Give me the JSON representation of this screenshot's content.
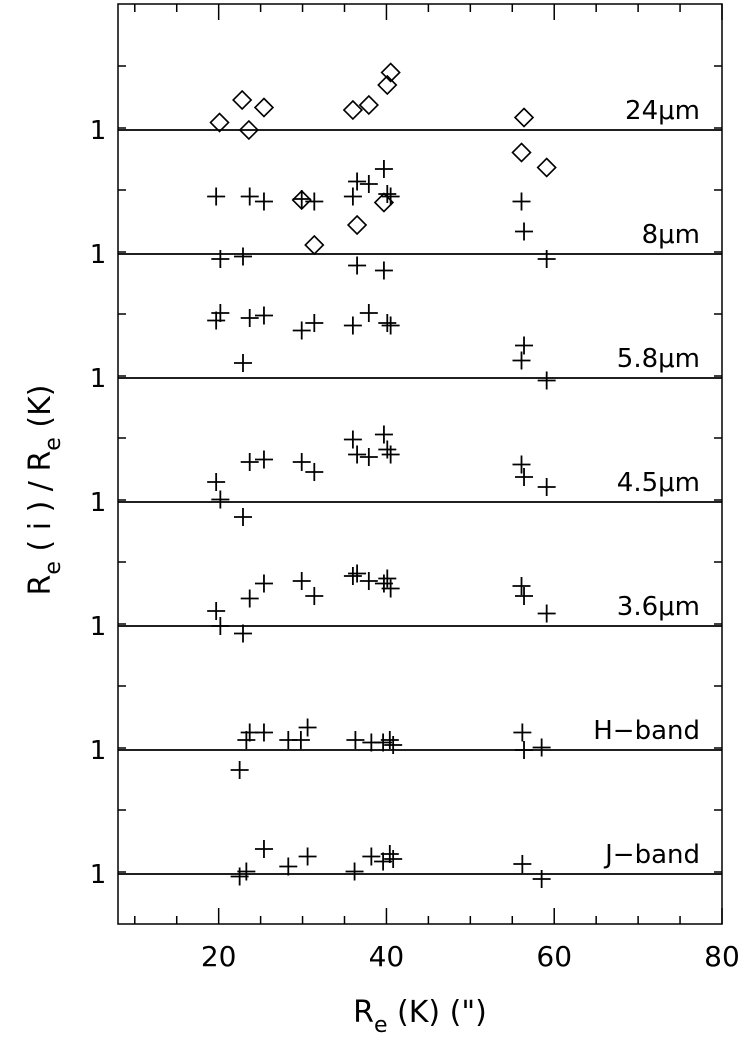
{
  "chart_data": {
    "type": "scatter",
    "title": "",
    "xlabel": "R",
    "xlabel_sub": "e",
    "xlabel_tail": " (K) (\")",
    "ylabel": "R",
    "ylabel_sub1": "e",
    "ylabel_mid": " ( i ) / R",
    "ylabel_sub2": "e",
    "ylabel_tail": " (K)",
    "xlim": [
      8,
      80
    ],
    "x_ticks": [
      20,
      40,
      60,
      80
    ],
    "x_tick_labels": [
      "20",
      "40",
      "60",
      "80"
    ],
    "grid": false,
    "legend": "none",
    "y_tick_label": "1",
    "series": [
      {
        "name": "24μm",
        "marker": "diamond",
        "baseline": 1,
        "points": [
          {
            "x": 20.1,
            "y": 1.03
          },
          {
            "x": 22.8,
            "y": 1.12
          },
          {
            "x": 23.6,
            "y": 1.0
          },
          {
            "x": 25.4,
            "y": 1.09
          },
          {
            "x": 29.9,
            "y": 0.72
          },
          {
            "x": 31.4,
            "y": 0.54
          },
          {
            "x": 36.0,
            "y": 1.08
          },
          {
            "x": 36.5,
            "y": 0.62
          },
          {
            "x": 37.9,
            "y": 1.1
          },
          {
            "x": 39.7,
            "y": 0.71
          },
          {
            "x": 40.1,
            "y": 1.18
          },
          {
            "x": 40.5,
            "y": 1.23
          },
          {
            "x": 56.1,
            "y": 0.91
          },
          {
            "x": 56.4,
            "y": 1.05
          },
          {
            "x": 59.1,
            "y": 0.85
          }
        ]
      },
      {
        "name": "8μm",
        "marker": "plus",
        "baseline": 1,
        "points": [
          {
            "x": 19.7,
            "y": 1.23
          },
          {
            "x": 20.2,
            "y": 0.98
          },
          {
            "x": 22.9,
            "y": 0.99
          },
          {
            "x": 23.7,
            "y": 1.23
          },
          {
            "x": 25.4,
            "y": 1.21
          },
          {
            "x": 29.9,
            "y": 1.22
          },
          {
            "x": 31.4,
            "y": 1.21
          },
          {
            "x": 36.0,
            "y": 1.23
          },
          {
            "x": 36.5,
            "y": 1.29
          },
          {
            "x": 37.9,
            "y": 1.28
          },
          {
            "x": 39.7,
            "y": 1.34
          },
          {
            "x": 40.1,
            "y": 1.24
          },
          {
            "x": 40.5,
            "y": 1.23
          },
          {
            "x": 56.1,
            "y": 1.21
          },
          {
            "x": 56.4,
            "y": 1.09
          },
          {
            "x": 59.1,
            "y": 0.98
          }
        ]
      },
      {
        "name": "5.8μm",
        "marker": "plus",
        "baseline": 1,
        "points": [
          {
            "x": 19.7,
            "y": 1.23
          },
          {
            "x": 20.2,
            "y": 1.26
          },
          {
            "x": 22.9,
            "y": 1.06
          },
          {
            "x": 23.7,
            "y": 1.24
          },
          {
            "x": 25.4,
            "y": 1.25
          },
          {
            "x": 29.9,
            "y": 1.19
          },
          {
            "x": 31.4,
            "y": 1.22
          },
          {
            "x": 36.0,
            "y": 1.21
          },
          {
            "x": 36.5,
            "y": 1.45
          },
          {
            "x": 37.9,
            "y": 1.26
          },
          {
            "x": 39.7,
            "y": 1.43
          },
          {
            "x": 40.1,
            "y": 1.22
          },
          {
            "x": 40.5,
            "y": 1.21
          },
          {
            "x": 56.1,
            "y": 1.07
          },
          {
            "x": 56.4,
            "y": 1.13
          },
          {
            "x": 59.1,
            "y": 0.99
          }
        ]
      },
      {
        "name": "4.5μm",
        "marker": "plus",
        "baseline": 1,
        "points": [
          {
            "x": 19.7,
            "y": 1.08
          },
          {
            "x": 20.2,
            "y": 1.01
          },
          {
            "x": 22.9,
            "y": 0.94
          },
          {
            "x": 23.7,
            "y": 1.16
          },
          {
            "x": 25.4,
            "y": 1.17
          },
          {
            "x": 29.9,
            "y": 1.16
          },
          {
            "x": 31.4,
            "y": 1.12
          },
          {
            "x": 36.0,
            "y": 1.25
          },
          {
            "x": 36.5,
            "y": 1.19
          },
          {
            "x": 37.9,
            "y": 1.18
          },
          {
            "x": 39.7,
            "y": 1.27
          },
          {
            "x": 40.1,
            "y": 1.21
          },
          {
            "x": 40.5,
            "y": 1.19
          },
          {
            "x": 56.1,
            "y": 1.15
          },
          {
            "x": 56.4,
            "y": 1.1
          },
          {
            "x": 59.1,
            "y": 1.06
          }
        ]
      },
      {
        "name": "3.6μm",
        "marker": "plus",
        "baseline": 1,
        "points": [
          {
            "x": 19.7,
            "y": 1.06
          },
          {
            "x": 20.2,
            "y": 1.0
          },
          {
            "x": 22.9,
            "y": 0.97
          },
          {
            "x": 23.7,
            "y": 1.11
          },
          {
            "x": 25.4,
            "y": 1.17
          },
          {
            "x": 29.9,
            "y": 1.18
          },
          {
            "x": 31.4,
            "y": 1.12
          },
          {
            "x": 36.0,
            "y": 1.2
          },
          {
            "x": 36.5,
            "y": 1.21
          },
          {
            "x": 37.9,
            "y": 1.18
          },
          {
            "x": 39.7,
            "y": 1.17
          },
          {
            "x": 40.1,
            "y": 1.19
          },
          {
            "x": 40.5,
            "y": 1.15
          },
          {
            "x": 56.1,
            "y": 1.16
          },
          {
            "x": 56.4,
            "y": 1.12
          },
          {
            "x": 59.1,
            "y": 1.05
          }
        ]
      },
      {
        "name": "H−band",
        "marker": "plus",
        "baseline": 1,
        "points": [
          {
            "x": 22.5,
            "y": 0.92
          },
          {
            "x": 23.3,
            "y": 1.04
          },
          {
            "x": 23.7,
            "y": 1.07
          },
          {
            "x": 25.4,
            "y": 1.07
          },
          {
            "x": 28.3,
            "y": 1.04
          },
          {
            "x": 29.8,
            "y": 1.04
          },
          {
            "x": 30.6,
            "y": 1.09
          },
          {
            "x": 36.3,
            "y": 1.04
          },
          {
            "x": 38.2,
            "y": 1.03
          },
          {
            "x": 39.6,
            "y": 1.03
          },
          {
            "x": 40.4,
            "y": 1.04
          },
          {
            "x": 40.8,
            "y": 1.02
          },
          {
            "x": 56.2,
            "y": 1.07
          },
          {
            "x": 56.4,
            "y": 1.0
          },
          {
            "x": 58.5,
            "y": 1.01
          }
        ]
      },
      {
        "name": "J−band",
        "marker": "plus",
        "baseline": 1,
        "points": [
          {
            "x": 22.5,
            "y": 0.99
          },
          {
            "x": 23.3,
            "y": 1.01
          },
          {
            "x": 25.4,
            "y": 1.1
          },
          {
            "x": 28.3,
            "y": 1.03
          },
          {
            "x": 30.6,
            "y": 1.07
          },
          {
            "x": 36.2,
            "y": 1.01
          },
          {
            "x": 38.2,
            "y": 1.07
          },
          {
            "x": 39.6,
            "y": 1.05
          },
          {
            "x": 40.4,
            "y": 1.08
          },
          {
            "x": 40.8,
            "y": 1.06
          },
          {
            "x": 56.2,
            "y": 1.04
          },
          {
            "x": 58.5,
            "y": 0.98
          }
        ]
      }
    ]
  }
}
